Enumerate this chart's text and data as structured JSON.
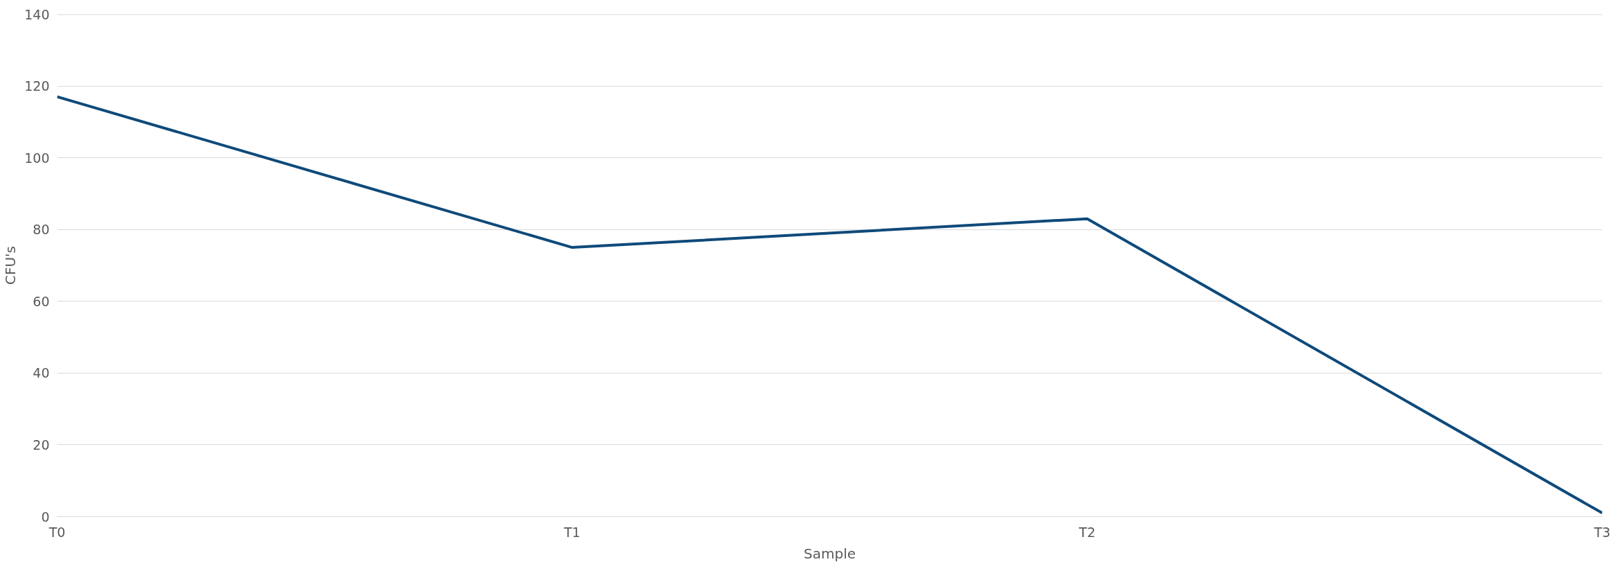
{
  "chart_data": {
    "type": "line",
    "xlabel": "Sample",
    "ylabel": "CFU's",
    "categories": [
      "T0",
      "T1",
      "T2",
      "T3"
    ],
    "series": [
      {
        "color": "#0f4a7a",
        "values": [
          117,
          75,
          83,
          1
        ]
      }
    ],
    "ylim": [
      0,
      140
    ],
    "yticks": [
      0,
      20,
      40,
      60,
      80,
      100,
      120,
      140
    ],
    "grid": "y",
    "marker": "none",
    "line_style": "solid"
  }
}
